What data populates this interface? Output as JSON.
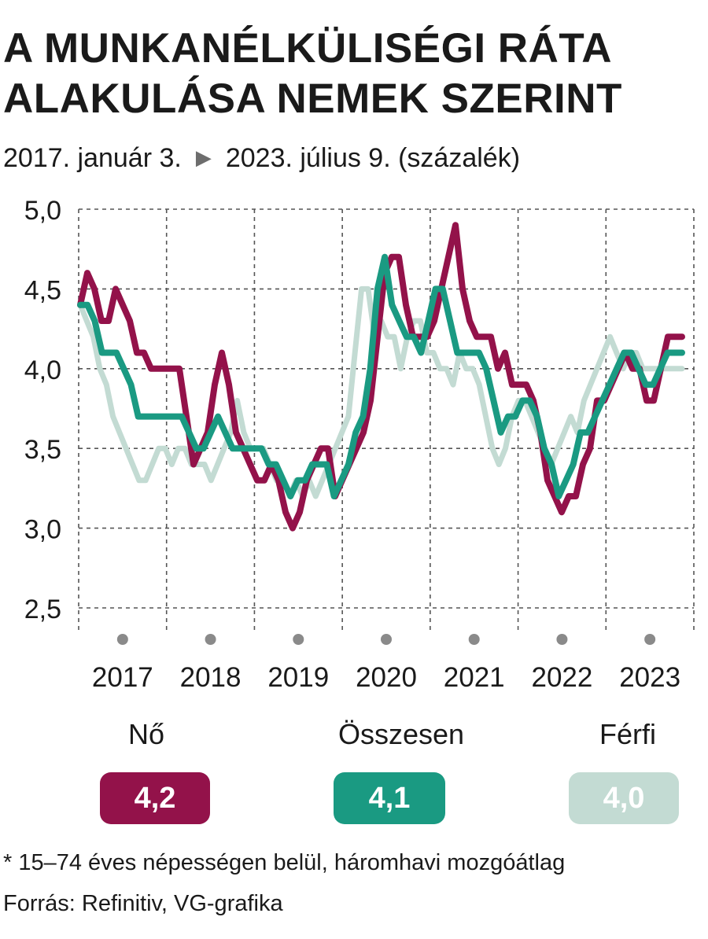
{
  "header": {
    "title_line1": "A MUNKANÉLKÜLISÉGI RÁTA",
    "title_line2": "ALAKULÁSA NEMEK SZERINT",
    "date_from": "2017. január 3.",
    "date_to": "2023. július 9. (százalék)"
  },
  "legend": {
    "items": [
      {
        "label": "Nő",
        "value": "4,2",
        "color": "#93124a"
      },
      {
        "label": "Összesen",
        "value": "4,1",
        "color": "#1a9a82"
      },
      {
        "label": "Férfi",
        "value": "4,0",
        "color": "#c3dbd3"
      }
    ]
  },
  "footer": {
    "note": "* 15–74 éves népességen belül, háromhavi mozgóátlag",
    "source": "Forrás: Refinitiv, VG-grafika"
  },
  "chart_data": {
    "type": "line",
    "title": "A MUNKANÉLKÜLISÉGI RÁTA ALAKULÁSA NEMEK SZERINT",
    "subtitle": "2017. január 3. ▶ 2023. július 9. (százalék)",
    "xlabel": "",
    "ylabel": "",
    "x_range": [
      2017.0,
      2023.5
    ],
    "xticks": [
      "2017",
      "2018",
      "2019",
      "2020",
      "2021",
      "2022",
      "2023"
    ],
    "ylim": [
      2.5,
      5.0
    ],
    "yticks": [
      "2,5",
      "3,0",
      "3,5",
      "4,0",
      "4,5",
      "5,0"
    ],
    "grid": true,
    "legend_position": "bottom",
    "series": [
      {
        "name": "Férfi",
        "color": "#c3dbd3",
        "values": [
          4.4,
          4.3,
          4.2,
          4.0,
          3.9,
          3.7,
          3.6,
          3.5,
          3.4,
          3.3,
          3.3,
          3.4,
          3.5,
          3.5,
          3.4,
          3.5,
          3.5,
          3.4,
          3.4,
          3.4,
          3.3,
          3.4,
          3.5,
          3.6,
          3.8,
          3.6,
          3.5,
          3.5,
          3.5,
          3.4,
          3.3,
          3.3,
          3.2,
          3.3,
          3.2,
          3.3,
          3.2,
          3.3,
          3.4,
          3.5,
          3.6,
          3.7,
          4.1,
          4.5,
          4.5,
          4.2,
          4.3,
          4.2,
          4.2,
          4.0,
          4.2,
          4.3,
          4.3,
          4.1,
          4.1,
          4.0,
          4.0,
          3.9,
          4.1,
          4.0,
          4.0,
          3.9,
          3.7,
          3.5,
          3.4,
          3.5,
          3.7,
          3.8,
          3.8,
          3.7,
          3.6,
          3.5,
          3.4,
          3.5,
          3.6,
          3.7,
          3.6,
          3.8,
          3.9,
          4.0,
          4.1,
          4.2,
          4.1,
          4.0,
          4.1,
          4.1,
          4.0,
          4.0,
          4.0,
          4.0,
          4.0,
          4.0,
          4.0
        ]
      },
      {
        "name": "Nő",
        "color": "#93124a",
        "values": [
          4.4,
          4.6,
          4.5,
          4.3,
          4.3,
          4.5,
          4.4,
          4.3,
          4.1,
          4.1,
          4.0,
          4.0,
          4.0,
          4.0,
          4.0,
          3.7,
          3.4,
          3.5,
          3.6,
          3.9,
          4.1,
          3.9,
          3.6,
          3.5,
          3.4,
          3.3,
          3.3,
          3.4,
          3.3,
          3.1,
          3.0,
          3.1,
          3.3,
          3.4,
          3.5,
          3.5,
          3.2,
          3.3,
          3.4,
          3.5,
          3.6,
          3.8,
          4.2,
          4.6,
          4.7,
          4.7,
          4.4,
          4.2,
          4.2,
          4.2,
          4.3,
          4.5,
          4.7,
          4.9,
          4.5,
          4.3,
          4.2,
          4.2,
          4.2,
          4.0,
          4.1,
          3.9,
          3.9,
          3.9,
          3.8,
          3.6,
          3.3,
          3.2,
          3.1,
          3.2,
          3.2,
          3.4,
          3.5,
          3.8,
          3.8,
          3.9,
          4.0,
          4.1,
          4.0,
          4.0,
          3.8,
          3.8,
          4.0,
          4.2,
          4.2,
          4.2
        ]
      },
      {
        "name": "Összesen",
        "color": "#1a9a82",
        "values": [
          4.4,
          4.4,
          4.3,
          4.1,
          4.1,
          4.1,
          4.0,
          3.9,
          3.7,
          3.7,
          3.7,
          3.7,
          3.7,
          3.7,
          3.7,
          3.6,
          3.5,
          3.5,
          3.6,
          3.7,
          3.6,
          3.5,
          3.5,
          3.5,
          3.5,
          3.5,
          3.4,
          3.4,
          3.3,
          3.2,
          3.3,
          3.3,
          3.4,
          3.4,
          3.4,
          3.2,
          3.3,
          3.4,
          3.6,
          3.7,
          4.0,
          4.5,
          4.7,
          4.4,
          4.3,
          4.2,
          4.2,
          4.1,
          4.3,
          4.5,
          4.5,
          4.3,
          4.1,
          4.1,
          4.1,
          4.1,
          4.0,
          3.8,
          3.6,
          3.7,
          3.7,
          3.8,
          3.8,
          3.7,
          3.5,
          3.4,
          3.2,
          3.3,
          3.4,
          3.6,
          3.6,
          3.7,
          3.8,
          3.9,
          4.0,
          4.1,
          4.1,
          4.0,
          3.9,
          3.9,
          4.0,
          4.1,
          4.1,
          4.1
        ]
      }
    ]
  }
}
